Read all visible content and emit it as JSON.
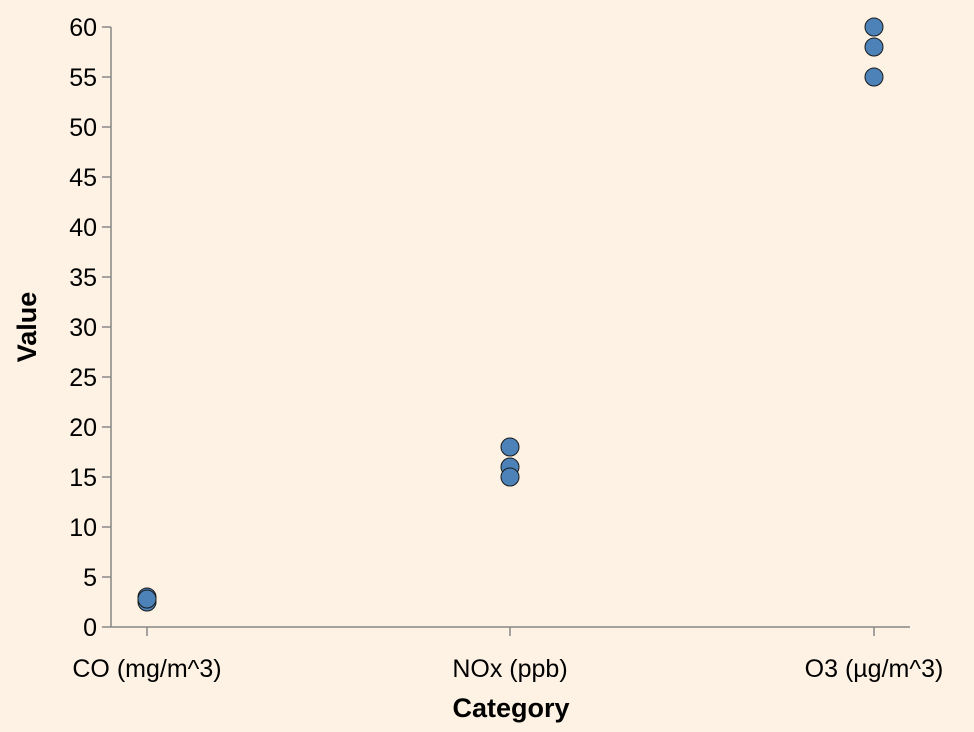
{
  "chart_data": {
    "type": "scatter",
    "xlabel": "Category",
    "ylabel": "Value",
    "categories": [
      "CO (mg/m^3)",
      "NOx (ppb)",
      "O3 (µg/m^3)"
    ],
    "points": [
      {
        "category": "CO (mg/m^3)",
        "value": 2.5
      },
      {
        "category": "CO (mg/m^3)",
        "value": 3.0
      },
      {
        "category": "CO (mg/m^3)",
        "value": 2.8
      },
      {
        "category": "NOx (ppb)",
        "value": 18
      },
      {
        "category": "NOx (ppb)",
        "value": 16
      },
      {
        "category": "NOx (ppb)",
        "value": 15
      },
      {
        "category": "O3 (µg/m^3)",
        "value": 60
      },
      {
        "category": "O3 (µg/m^3)",
        "value": 58
      },
      {
        "category": "O3 (µg/m^3)",
        "value": 55
      }
    ],
    "yticks": [
      0,
      5,
      10,
      15,
      20,
      25,
      30,
      35,
      40,
      45,
      50,
      55,
      60
    ],
    "ylim": [
      0,
      60
    ],
    "grid": false,
    "colors": {
      "background": "#fdf2e3",
      "point_fill": "#4c82b8",
      "point_stroke": "#1a1a1a",
      "axis": "#888888",
      "text": "#000000"
    }
  }
}
